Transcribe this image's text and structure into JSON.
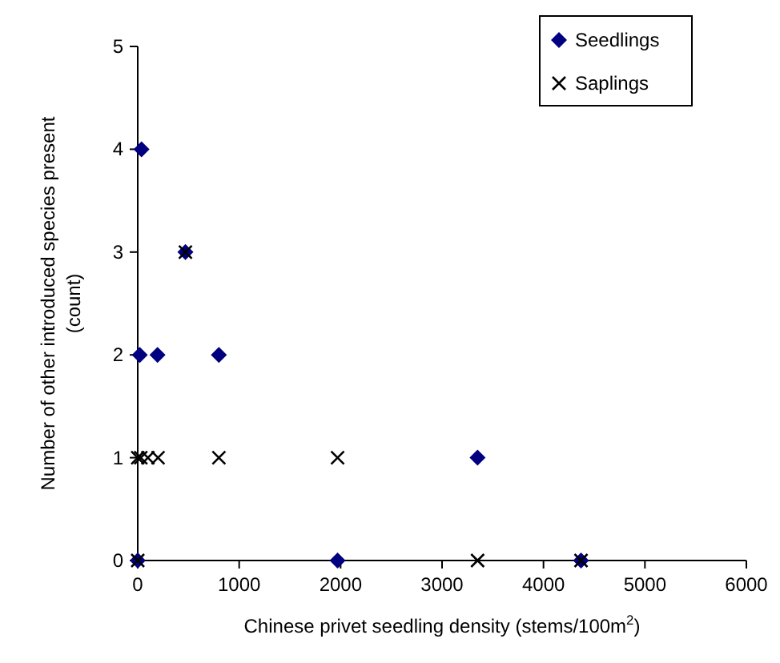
{
  "chart_data": {
    "type": "scatter",
    "xlabel": "Chinese privet seedling density (stems/100m$^{2}$)",
    "ylabel": "Number of other introduced species present (count)",
    "xlim": [
      0,
      6000
    ],
    "xticks": [
      0,
      1000,
      2000,
      3000,
      4000,
      5000,
      6000
    ],
    "ylim": [
      0,
      5
    ],
    "yticks": [
      0,
      1,
      2,
      3,
      4,
      5
    ],
    "legend": "top right",
    "grid": false,
    "series": [
      {
        "name": "Seedlings",
        "color": "#000080",
        "marker": "diamond",
        "x": [
          0,
          37,
          20,
          195,
          470,
          800,
          1970,
          3350,
          4370
        ],
        "values": [
          0,
          4,
          2,
          2,
          3,
          2,
          0,
          1,
          0
        ]
      },
      {
        "name": "Saplings",
        "color": "#000000",
        "marker": "cross",
        "x": [
          0,
          0,
          30,
          100,
          200,
          470,
          800,
          1970,
          3350,
          4370
        ],
        "values": [
          0,
          1,
          1,
          1,
          1,
          3,
          1,
          1,
          0,
          0
        ]
      }
    ]
  }
}
